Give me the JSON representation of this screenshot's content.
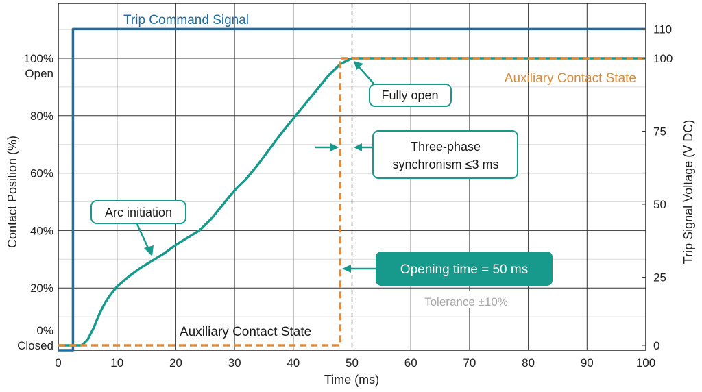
{
  "chart_data": {
    "type": "line",
    "xlabel": "Time (ms)",
    "ylabel_left": "Contact Position (%)",
    "ylabel_right": "Trip Signal Voltage (V DC)",
    "xlim": [
      0,
      100
    ],
    "ylim_left": [
      0,
      100
    ],
    "ylim_right": [
      0,
      110
    ],
    "grid": true,
    "x_ticks": [
      "0",
      "10",
      "20",
      "30",
      "40",
      "50",
      "60",
      "70",
      "80",
      "90",
      "100"
    ],
    "y_ticks_left": [
      {
        "value": 0,
        "label": "0%",
        "sub": "Closed"
      },
      {
        "value": 20,
        "label": "20%"
      },
      {
        "value": 40,
        "label": "40%"
      },
      {
        "value": 60,
        "label": "60%"
      },
      {
        "value": 80,
        "label": "80%"
      },
      {
        "value": 100,
        "label": "100%",
        "sub": "Open"
      }
    ],
    "y_ticks_right": [
      "0",
      "25",
      "50",
      "75",
      "100",
      "110"
    ],
    "series": [
      {
        "name": "Trip Command Signal",
        "axis": "right",
        "color": "#1b6ea5",
        "points": [
          [
            0,
            0
          ],
          [
            2.5,
            0
          ],
          [
            2.5,
            110
          ],
          [
            100,
            110
          ]
        ]
      },
      {
        "name": "Auxiliary Contact State",
        "axis": "left",
        "color": "#e08a3a",
        "style": "dashed",
        "points": [
          [
            0,
            0
          ],
          [
            48,
            0
          ],
          [
            48,
            100
          ],
          [
            100,
            100
          ]
        ]
      },
      {
        "axis": "left",
        "color": "#17998b",
        "points": [
          [
            0,
            0
          ],
          [
            4,
            0
          ],
          [
            5,
            2
          ],
          [
            6,
            6
          ],
          [
            7,
            11
          ],
          [
            8,
            15
          ],
          [
            9,
            18
          ],
          [
            10,
            20.5
          ],
          [
            12,
            24
          ],
          [
            14,
            27
          ],
          [
            16,
            29.5
          ],
          [
            18,
            32
          ],
          [
            20,
            35
          ],
          [
            22,
            37.5
          ],
          [
            24,
            40
          ],
          [
            26,
            44
          ],
          [
            28,
            49
          ],
          [
            30,
            54
          ],
          [
            32,
            58
          ],
          [
            34,
            63
          ],
          [
            36,
            68.5
          ],
          [
            38,
            74
          ],
          [
            40,
            79
          ],
          [
            42,
            84
          ],
          [
            44,
            89
          ],
          [
            46,
            94
          ],
          [
            48,
            98
          ],
          [
            50,
            100
          ],
          [
            100,
            100
          ]
        ]
      }
    ],
    "marker_line_x": 50,
    "annotations": {
      "trip_label": "Trip Command Signal",
      "aux_label_bottom": "Auxiliary Contact State",
      "aux_label_top": "Auxiliary Contact State",
      "arc": "Arc initiation",
      "fully_open": "Fully open",
      "sync_line1": "Three-phase",
      "sync_line2": "synchronism ≤3 ms",
      "opening_time": "Opening time = 50 ms",
      "tolerance": "Tolerance ±10%"
    }
  }
}
